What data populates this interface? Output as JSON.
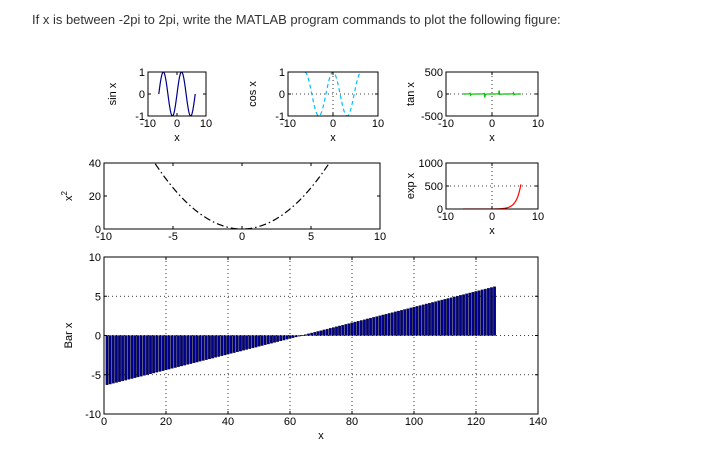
{
  "question": "If x is between -2pi to 2pi, write the MATLAB program commands to plot the following figure:",
  "chart_data": [
    {
      "id": "sin",
      "type": "line",
      "function": "sin(x)",
      "x_range": [
        -6.2832,
        6.2832
      ],
      "xlim": [
        -10,
        10
      ],
      "ylim": [
        -1,
        1
      ],
      "xticks": [
        -10,
        0,
        10
      ],
      "yticks": [
        -1,
        0,
        1
      ],
      "xlabel": "x",
      "ylabel": "sin x",
      "color": "#00008b",
      "line_style": "solid",
      "grid": false
    },
    {
      "id": "cos",
      "type": "line",
      "function": "cos(x)",
      "x_range": [
        -6.2832,
        6.2832
      ],
      "xlim": [
        -10,
        10
      ],
      "ylim": [
        -1,
        1
      ],
      "xticks": [
        -10,
        0,
        10
      ],
      "yticks": [
        -1,
        0,
        1
      ],
      "xlabel": "x",
      "ylabel": "cos x",
      "color": "#00bfff",
      "line_style": "dashed",
      "grid": true
    },
    {
      "id": "tan",
      "type": "line",
      "function": "tan(x)",
      "x_range": [
        -6.2832,
        6.2832
      ],
      "xlim": [
        -10,
        10
      ],
      "ylim": [
        -500,
        500
      ],
      "xticks": [
        -10,
        0,
        10
      ],
      "yticks": [
        -500,
        0,
        500
      ],
      "xlabel": "x",
      "ylabel": "tan x",
      "color": "#00c000",
      "line_style": "solid",
      "grid": true
    },
    {
      "id": "sq",
      "type": "line",
      "function": "x^2",
      "x_range": [
        -6.2832,
        6.2832
      ],
      "xlim": [
        -10,
        10
      ],
      "ylim": [
        0,
        40
      ],
      "xticks": [
        -10,
        -5,
        0,
        5,
        10
      ],
      "yticks": [
        0,
        20,
        40
      ],
      "xlabel": "",
      "ylabel": "x^2",
      "color": "#000000",
      "line_style": "dashdot",
      "grid": false
    },
    {
      "id": "exp",
      "type": "line",
      "function": "exp(x)",
      "x_range": [
        -6.2832,
        6.2832
      ],
      "xlim": [
        -10,
        10
      ],
      "ylim": [
        0,
        1000
      ],
      "xticks": [
        -10,
        0,
        10
      ],
      "yticks": [
        0,
        500,
        1000
      ],
      "xlabel": "x",
      "ylabel": "exp x",
      "color": "#ff0000",
      "line_style": "solid",
      "grid": true
    },
    {
      "id": "bar",
      "type": "bar",
      "function": "bar(x)",
      "x_range": [
        -6.2832,
        6.2832
      ],
      "n_points": 126,
      "xlim": [
        0,
        140
      ],
      "ylim": [
        -10,
        10
      ],
      "xticks": [
        0,
        20,
        40,
        60,
        80,
        100,
        120,
        140
      ],
      "yticks": [
        -10,
        -5,
        0,
        5,
        10
      ],
      "xlabel": "x",
      "ylabel": "Bar x",
      "color": "#00008b",
      "grid": true
    }
  ]
}
